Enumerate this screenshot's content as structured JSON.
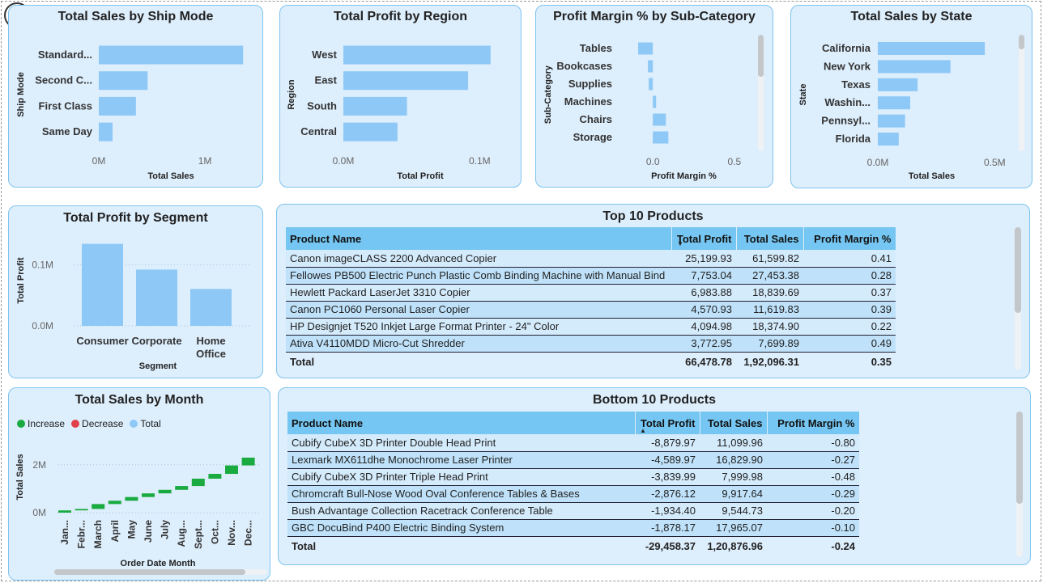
{
  "chart_data": [
    {
      "id": "ship",
      "type": "bar",
      "orientation": "horizontal",
      "title": "Total Sales by Ship Mode",
      "xlabel": "Total Sales",
      "ylabel": "Ship Mode",
      "categories": [
        "Standard...",
        "Second C...",
        "First Class",
        "Same Day"
      ],
      "values": [
        1360000,
        460000,
        350000,
        130000
      ],
      "xlim": [
        0,
        1450000
      ],
      "ticks": [
        {
          "v": 0,
          "label": "0M"
        },
        {
          "v": 1000000,
          "label": "1M"
        }
      ],
      "color": "#8ec8f6"
    },
    {
      "id": "region",
      "type": "bar",
      "orientation": "horizontal",
      "title": "Total Profit by Region",
      "xlabel": "Total Profit",
      "ylabel": "Region",
      "categories": [
        "West",
        "East",
        "South",
        "Central"
      ],
      "values": [
        108000,
        91500,
        46700,
        39700
      ],
      "xlim": [
        0,
        120000
      ],
      "ticks": [
        {
          "v": 0,
          "label": "0.0M"
        },
        {
          "v": 100000,
          "label": "0.1M"
        }
      ],
      "color": "#8ec8f6"
    },
    {
      "id": "margin",
      "type": "bar",
      "orientation": "horizontal",
      "title": "Profit Margin % by Sub-Category",
      "xlabel": "Profit Margin %",
      "ylabel": "Sub-Category",
      "categories": [
        "Tables",
        "Bookcases",
        "Supplies",
        "Machines",
        "Chairs",
        "Storage"
      ],
      "values": [
        -0.09,
        -0.03,
        -0.025,
        0.02,
        0.08,
        0.095
      ],
      "xlim": [
        -0.12,
        0.6
      ],
      "ticks": [
        {
          "v": 0,
          "label": "0.0"
        },
        {
          "v": 0.5,
          "label": "0.5"
        }
      ],
      "color": "#8ec8f6"
    },
    {
      "id": "state",
      "type": "bar",
      "orientation": "horizontal",
      "title": "Total Sales by State",
      "xlabel": "Total Sales",
      "ylabel": "State",
      "categories": [
        "California",
        "New York",
        "Texas",
        "Washin...",
        "Pennsyl...",
        "Florida"
      ],
      "values": [
        457700,
        310900,
        170200,
        138600,
        116500,
        89500
      ],
      "xlim": [
        0,
        620000
      ],
      "ticks": [
        {
          "v": 0,
          "label": "0.0M"
        },
        {
          "v": 500000,
          "label": "0.5M"
        }
      ],
      "color": "#8ec8f6"
    },
    {
      "id": "segment",
      "type": "bar",
      "orientation": "vertical",
      "title": "Total Profit by Segment",
      "xlabel": "Segment",
      "ylabel": "Total Profit",
      "categories": [
        "Consumer",
        "Corporate",
        "Home Office"
      ],
      "category_lines": [
        [
          "Consumer"
        ],
        [
          "Corporate"
        ],
        [
          "Home",
          "Office"
        ]
      ],
      "values": [
        134000,
        91900,
        60300
      ],
      "ylim": [
        0,
        140000
      ],
      "ticks": [
        {
          "v": 0,
          "label": "0.0M"
        },
        {
          "v": 100000,
          "label": "0.1M"
        }
      ],
      "color": "#8ec8f6"
    },
    {
      "id": "month",
      "type": "waterfall",
      "title": "Total Sales by Month",
      "xlabel": "Order Date Month",
      "ylabel": "Total Sales",
      "legend": [
        {
          "name": "Increase",
          "color": "#1aab40"
        },
        {
          "name": "Decrease",
          "color": "#e0404a"
        },
        {
          "name": "Total",
          "color": "#8ec8f6"
        }
      ],
      "categories": [
        "Jan...",
        "Febr...",
        "March",
        "April",
        "May",
        "June",
        "July",
        "Aug...",
        "Sept...",
        "Oct...",
        "Nov...",
        "Dec..."
      ],
      "values": [
        94900,
        59800,
        205000,
        137800,
        155000,
        152700,
        147200,
        159000,
        307600,
        200300,
        352500,
        325300
      ],
      "ylim": [
        0,
        2600000
      ],
      "ticks": [
        {
          "v": 0,
          "label": "0M"
        },
        {
          "v": 2000000,
          "label": "2M"
        }
      ],
      "color": "#1aab40"
    }
  ],
  "top_table": {
    "title": "Top 10 Products",
    "columns": [
      "Product Name",
      "Total Profit",
      "Total Sales",
      "Profit Margin %"
    ],
    "rows": [
      [
        "Canon imageCLASS 2200 Advanced Copier",
        "25,199.93",
        "61,599.82",
        "0.41"
      ],
      [
        "Fellowes PB500 Electric Punch Plastic Comb Binding Machine with Manual Bind",
        "7,753.04",
        "27,453.38",
        "0.28"
      ],
      [
        "Hewlett Packard LaserJet 3310 Copier",
        "6,983.88",
        "18,839.69",
        "0.37"
      ],
      [
        "Canon PC1060 Personal Laser Copier",
        "4,570.93",
        "11,619.83",
        "0.39"
      ],
      [
        "HP Designjet T520 Inkjet Large Format Printer - 24\" Color",
        "4,094.98",
        "18,374.90",
        "0.22"
      ],
      [
        "Ativa V4110MDD Micro-Cut Shredder",
        "3,772.95",
        "7,699.89",
        "0.49"
      ]
    ],
    "total": [
      "Total",
      "66,478.78",
      "1,92,096.31",
      "0.35"
    ]
  },
  "bottom_table": {
    "title": "Bottom 10 Products",
    "columns": [
      "Product Name",
      "Total Profit",
      "Total Sales",
      "Profit Margin %"
    ],
    "rows": [
      [
        "Cubify CubeX 3D Printer Double Head Print",
        "-8,879.97",
        "11,099.96",
        "-0.80"
      ],
      [
        "Lexmark MX611dhe Monochrome Laser Printer",
        "-4,589.97",
        "16,829.90",
        "-0.27"
      ],
      [
        "Cubify CubeX 3D Printer Triple Head Print",
        "-3,839.99",
        "7,999.98",
        "-0.48"
      ],
      [
        "Chromcraft Bull-Nose Wood Oval Conference Tables & Bases",
        "-2,876.12",
        "9,917.64",
        "-0.29"
      ],
      [
        "Bush Advantage Collection Racetrack Conference Table",
        "-1,934.40",
        "9,544.73",
        "-0.20"
      ],
      [
        "GBC DocuBind P400 Electric Binding System",
        "-1,878.17",
        "17,965.07",
        "-0.10"
      ]
    ],
    "total": [
      "Total",
      "-29,458.37",
      "1,20,876.96",
      "-0.24"
    ]
  }
}
